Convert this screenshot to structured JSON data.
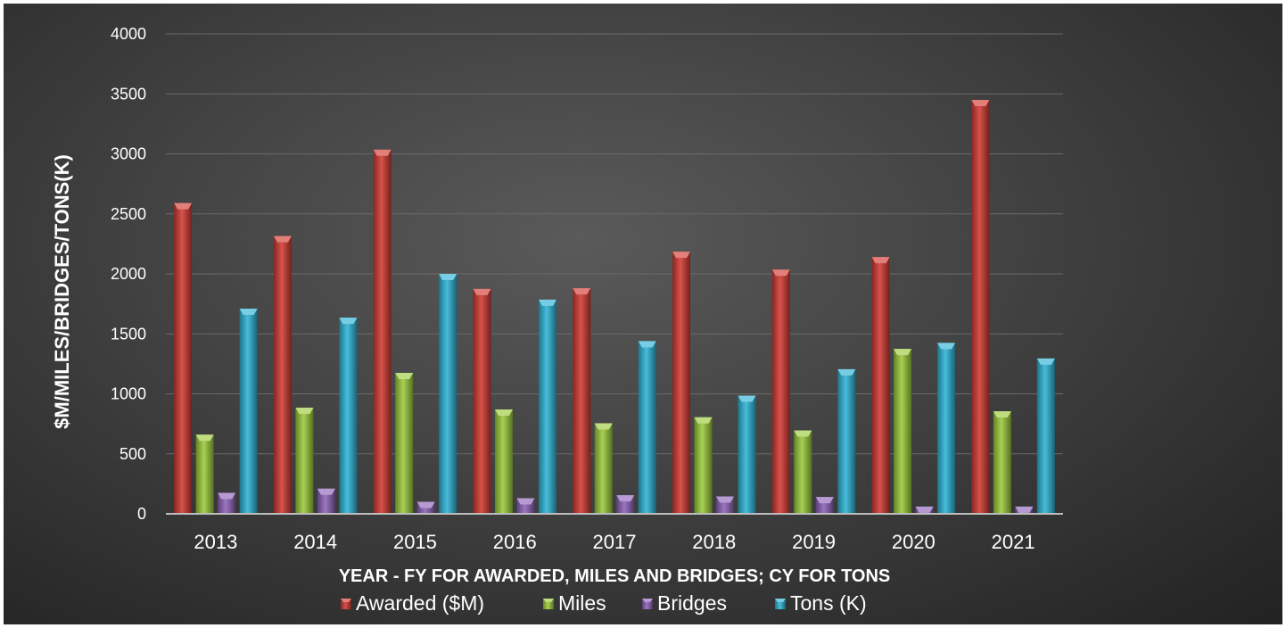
{
  "chart_data": {
    "type": "bar",
    "xlabel": "YEAR - FY FOR AWARDED, MILES AND BRIDGES; CY FOR TONS",
    "ylabel": "$M/MILES/BRIDGES/TONS(K)",
    "ylim": [
      0,
      4000
    ],
    "yticks": [
      0,
      500,
      1000,
      1500,
      2000,
      2500,
      3000,
      3500,
      4000
    ],
    "grid": true,
    "legend_position": "bottom",
    "categories": [
      "2013",
      "2014",
      "2015",
      "2016",
      "2017",
      "2018",
      "2019",
      "2020",
      "2021"
    ],
    "series": [
      {
        "name": "Awarded ($M)",
        "color": "#d33a32",
        "values": [
          2590,
          2315,
          3035,
          1875,
          1880,
          2185,
          2035,
          2140,
          3450
        ]
      },
      {
        "name": "Miles",
        "color": "#9ccb3b",
        "values": [
          660,
          885,
          1175,
          870,
          755,
          805,
          695,
          1375,
          855
        ]
      },
      {
        "name": "Bridges",
        "color": "#8e63b8",
        "values": [
          175,
          210,
          100,
          130,
          155,
          145,
          140,
          60,
          60
        ]
      },
      {
        "name": "Tons (K)",
        "color": "#2eb4d6",
        "values": [
          1710,
          1635,
          2000,
          1785,
          1440,
          985,
          1205,
          1425,
          1295
        ]
      }
    ]
  }
}
